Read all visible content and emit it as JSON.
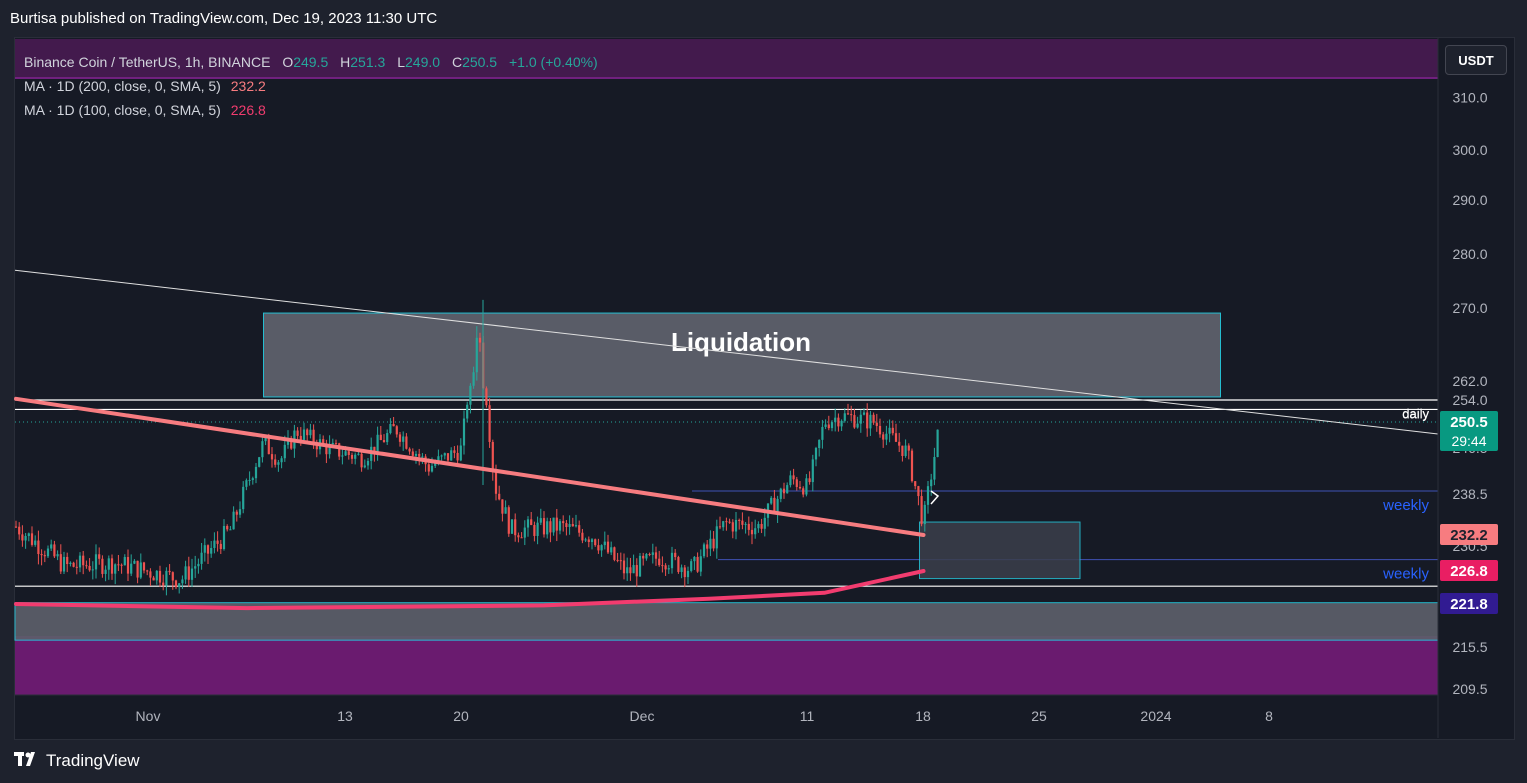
{
  "caption": "Burtisa published on TradingView.com, Dec 19, 2023 11:30 UTC",
  "legend": {
    "symbol": "Binance Coin / TetherUS, 1h, BINANCE",
    "o_label": "O",
    "o_value": "249.5",
    "h_label": "H",
    "h_value": "251.3",
    "l_label": "L",
    "l_value": "249.0",
    "c_label": "C",
    "c_value": "250.5",
    "change": "+1.0 (+0.40%)",
    "ma200_label": "MA · 1D (200, close, 0, SMA, 5)",
    "ma200_value": "232.2",
    "ma100_label": "MA · 1D (100, close, 0, SMA, 5)",
    "ma100_value": "226.8"
  },
  "currency_button": "USDT",
  "footer": {
    "logo_text": "TradingView",
    "logo_icon": "tradingview-logo-icon"
  },
  "colors": {
    "up": "#26a69a",
    "down": "#ef5350",
    "ma200": "#f77c80",
    "ma100": "#f23c6f",
    "zone_fill": "#5d606b",
    "zone_border": "#26c6da",
    "purple_band": "#6a1b6f",
    "weekly_text": "#2962ff",
    "price_label_bg": "#089981",
    "ma100_label_bg": "#e91e63",
    "blue_label_bg": "#311b92"
  },
  "chart_data": {
    "type": "candlestick",
    "title": "Binance Coin / TetherUS, 1h, BINANCE",
    "y_axis_ticks": [
      "310.0",
      "300.0",
      "290.0",
      "280.0",
      "270.0",
      "262.0",
      "254.0",
      "250.5",
      "238.5",
      "232.2",
      "226.8",
      "221.8",
      "215.5",
      "209.5"
    ],
    "x_axis_ticks": [
      "Nov",
      "13",
      "20",
      "Dec",
      "11",
      "18",
      "25",
      "2024",
      "8"
    ],
    "price_labels": [
      {
        "value": "250.5",
        "sub": "29:44",
        "kind": "last"
      },
      {
        "value": "232.2",
        "kind": "ma200"
      },
      {
        "value": "226.8",
        "kind": "ma100"
      },
      {
        "value": "221.8",
        "kind": "level"
      }
    ],
    "annotations": {
      "liquidation_zone": {
        "label": "Liquidation",
        "price_low": 255.5,
        "price_high": 269.5,
        "from": "Nov 8",
        "to": "Jan 5"
      },
      "support_zone": {
        "price_low": 216.5,
        "price_high": 222.0
      },
      "demand_box": {
        "price_low": 225.5,
        "price_high": 232.5,
        "from": "Dec 18",
        "to": "Dec 27"
      },
      "lines": [
        {
          "price": 254.0,
          "label": "daily"
        },
        {
          "price": 252.5,
          "label": "daily"
        },
        {
          "price": 239.0,
          "label": "weekly"
        },
        {
          "price": 228.5,
          "label": "weekly"
        },
        {
          "price": 224.5,
          "label": ""
        }
      ],
      "trendline": {
        "from_price": 277.0,
        "to_price": 248.0
      },
      "last_price": 250.5
    },
    "series": [
      {
        "name": "price_path",
        "x": [
          "Oct 25",
          "Oct 28",
          "Oct 31",
          "Nov 3",
          "Nov 6",
          "Nov 8",
          "Nov 9",
          "Nov 10",
          "Nov 12",
          "Nov 14",
          "Nov 16",
          "Nov 18",
          "Nov 20",
          "Nov 21",
          "Nov 22",
          "Nov 23",
          "Nov 26",
          "Nov 28",
          "Nov 30",
          "Dec 2",
          "Dec 4",
          "Dec 6",
          "Dec 8",
          "Dec 10",
          "Dec 11",
          "Dec 12",
          "Dec 13",
          "Dec 15",
          "Dec 17",
          "Dec 18",
          "Dec 19"
        ],
        "y": [
          233.5,
          227.5,
          228.0,
          225.5,
          233.0,
          247.0,
          244.0,
          249.0,
          246.0,
          244.5,
          249.5,
          243.0,
          246.0,
          269.5,
          240.0,
          233.0,
          233.5,
          232.0,
          226.5,
          229.0,
          227.0,
          234.0,
          233.5,
          241.0,
          239.5,
          250.5,
          251.5,
          250.5,
          245.5,
          234.0,
          250.5
        ]
      },
      {
        "name": "MA · 1D (200, close, 0, SMA, 5)",
        "x": [
          "Oct 25",
          "Dec 18"
        ],
        "y": [
          254.5,
          232.2
        ]
      },
      {
        "name": "MA · 1D (100, close, 0, SMA, 5)",
        "x": [
          "Oct 25",
          "Nov 7",
          "Nov 25",
          "Dec 5",
          "Dec 12",
          "Dec 18"
        ],
        "y": [
          221.8,
          221.2,
          221.6,
          222.6,
          223.5,
          226.8
        ]
      }
    ]
  }
}
